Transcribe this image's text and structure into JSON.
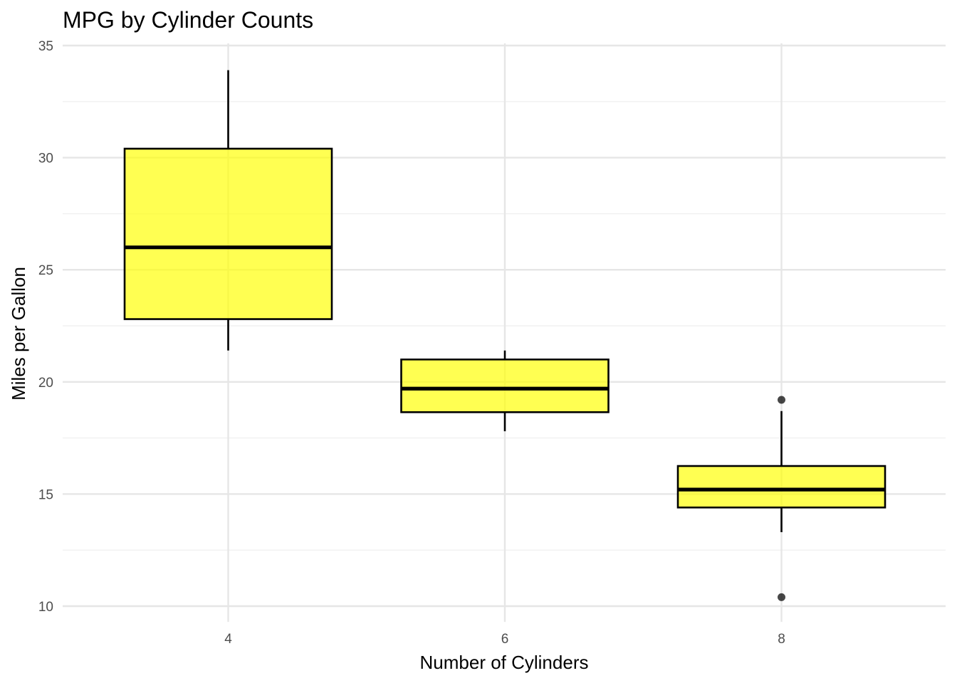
{
  "chart_data": {
    "type": "boxplot",
    "title": "MPG by Cylinder Counts",
    "xlabel": "Number of Cylinders",
    "ylabel": "Miles per Gallon",
    "ylim": [
      9.3,
      35.1
    ],
    "yticks": [
      10,
      15,
      20,
      25,
      30,
      35
    ],
    "y_minor_ticks": [
      12.5,
      17.5,
      22.5,
      27.5,
      32.5
    ],
    "categories": [
      "4",
      "6",
      "8"
    ],
    "boxes": [
      {
        "category": "4",
        "whisker_low": 21.4,
        "q1": 22.8,
        "median": 26.0,
        "q3": 30.4,
        "whisker_high": 33.9,
        "outliers": []
      },
      {
        "category": "6",
        "whisker_low": 17.8,
        "q1": 18.65,
        "median": 19.7,
        "q3": 21.0,
        "whisker_high": 21.4,
        "outliers": []
      },
      {
        "category": "8",
        "whisker_low": 13.3,
        "q1": 14.4,
        "median": 15.2,
        "q3": 16.25,
        "whisker_high": 18.7,
        "outliers": [
          10.4,
          19.2
        ]
      }
    ],
    "grid": true,
    "legend": "none",
    "colors": {
      "box_fill": "#ffff00",
      "box_stroke": "#000000",
      "outlier": "#000000",
      "grid": "#e6e6e6"
    }
  }
}
